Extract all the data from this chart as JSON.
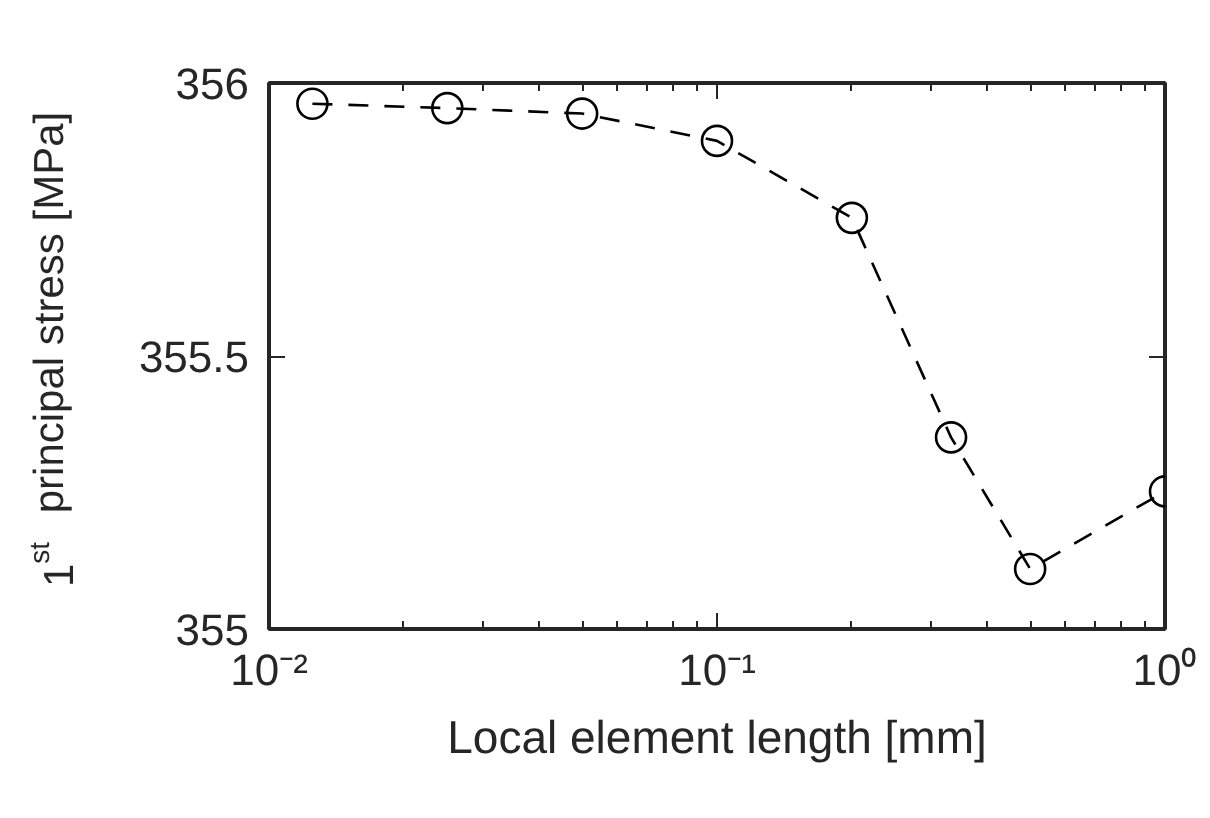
{
  "chart_data": {
    "type": "line",
    "xlabel": "Local element length [mm]",
    "ylabel": "1$^{st}$ principal stress [MPa]",
    "x": [
      0.0125,
      0.025,
      0.05,
      0.1,
      0.2,
      0.333,
      0.5,
      1
    ],
    "series": [
      {
        "color": "#000000",
        "values": [
          355.962,
          355.954,
          355.944,
          355.894,
          355.753,
          355.351,
          355.11,
          355.252
        ]
      }
    ],
    "log": "x",
    "xlim": [
      0.01,
      1
    ],
    "ylim": [
      355,
      356
    ],
    "xticks": [
      {
        "value": 0.01,
        "label": "10⁻²"
      },
      {
        "value": 0.1,
        "label": "10⁻¹"
      },
      {
        "value": 1,
        "label": "10⁰"
      }
    ],
    "yticks": [
      355,
      355.5,
      356
    ],
    "marker": "circle",
    "line_style": "dashed",
    "grid": false
  }
}
